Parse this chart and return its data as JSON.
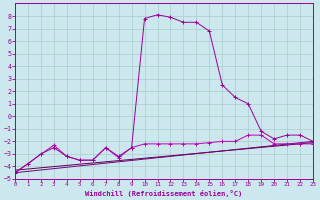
{
  "background_color": "#cce8ee",
  "grid_color": "#aacccc",
  "line_color_main": "#990099",
  "line_color2": "#bb00bb",
  "line_color3": "#770077",
  "line_color4": "#550055",
  "xlabel": "Windchill (Refroidissement éolien,°C)",
  "xlim": [
    0,
    23
  ],
  "ylim": [
    -5,
    9
  ],
  "yticks": [
    -5,
    -4,
    -3,
    -2,
    -1,
    0,
    1,
    2,
    3,
    4,
    5,
    6,
    7,
    8
  ],
  "xticks": [
    0,
    1,
    2,
    3,
    4,
    5,
    6,
    7,
    8,
    9,
    10,
    11,
    12,
    13,
    14,
    15,
    16,
    17,
    18,
    19,
    20,
    21,
    22,
    23
  ],
  "line1_x": [
    0,
    1,
    2,
    3,
    4,
    5,
    6,
    7,
    8,
    9,
    10,
    11,
    12,
    13,
    14,
    15,
    16,
    17,
    18,
    19,
    20,
    21,
    22,
    23
  ],
  "line1_y": [
    -4.5,
    -3.8,
    -3.0,
    -2.5,
    -3.2,
    -3.5,
    -3.5,
    -2.5,
    -3.2,
    -2.5,
    7.8,
    8.1,
    7.9,
    7.5,
    7.5,
    6.8,
    2.5,
    1.5,
    1.0,
    -1.2,
    -1.8,
    -1.5,
    -1.5,
    -2.0
  ],
  "line2_x": [
    0,
    3,
    4,
    5,
    6,
    7,
    8,
    9,
    10,
    11,
    12,
    13,
    14,
    15,
    16,
    17,
    18,
    19,
    20,
    21,
    22,
    23
  ],
  "line2_y": [
    -4.5,
    -2.3,
    -3.2,
    -3.5,
    -3.5,
    -2.5,
    -3.3,
    -2.5,
    -2.2,
    -2.2,
    -2.2,
    -2.2,
    -2.2,
    -2.1,
    -2.0,
    -2.0,
    -1.5,
    -1.5,
    -2.2,
    -2.2,
    -2.2,
    -2.2
  ],
  "line3_x": [
    0,
    23
  ],
  "line3_y": [
    -4.5,
    -2.0
  ],
  "line4_x": [
    0,
    23
  ],
  "line4_y": [
    -4.3,
    -2.1
  ]
}
